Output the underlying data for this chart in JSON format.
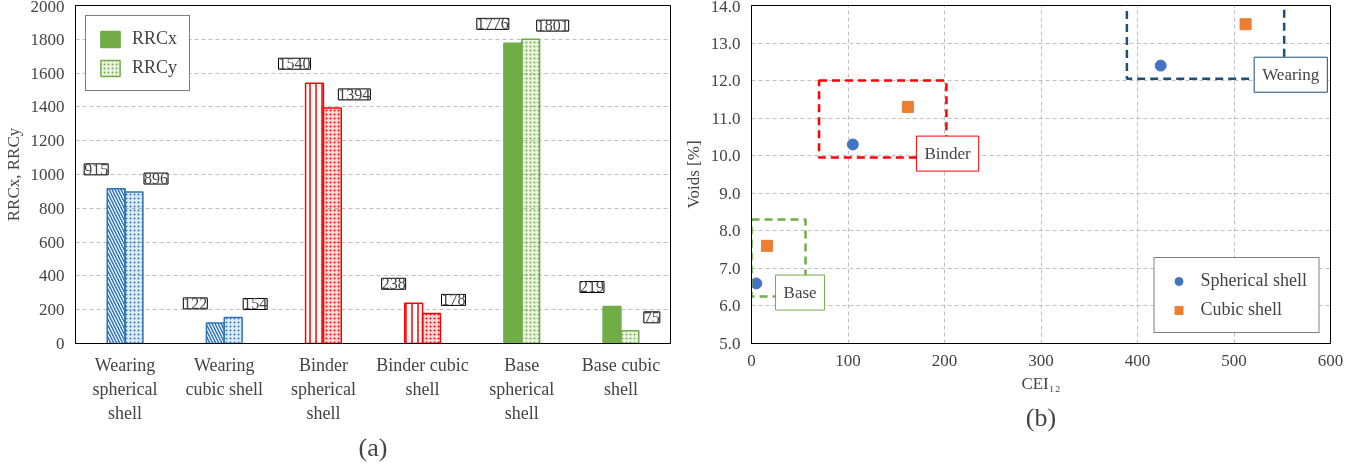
{
  "chart_data": [
    {
      "type": "bar",
      "title": "(a)",
      "ylabel": "RRCx, RRCy",
      "categories": [
        "Wearing spherical shell",
        "Wearing cubic shell",
        "Binder spherical shell",
        "Binder cubic shell",
        "Base spherical shell",
        "Base cubic shell"
      ],
      "series": [
        {
          "name": "RRCx",
          "colors": [
            "#2e75b6",
            "#2e75b6",
            "#ff0000",
            "#ff0000",
            "#70ad47",
            "#70ad47"
          ],
          "values": [
            915,
            122,
            1540,
            238,
            1776,
            219
          ]
        },
        {
          "name": "RRCy",
          "colors": [
            "#2e75b6",
            "#2e75b6",
            "#ff0000",
            "#ff0000",
            "#70ad47",
            "#70ad47"
          ],
          "values": [
            896,
            154,
            1394,
            178,
            1801,
            75
          ]
        }
      ],
      "ylim": [
        0,
        2000
      ],
      "yticks": [
        0,
        200,
        400,
        600,
        800,
        1000,
        1200,
        1400,
        1600,
        1800,
        2000
      ],
      "grid": "y",
      "legend": "top left",
      "data_labels": true
    },
    {
      "type": "scatter",
      "title": "(b)",
      "xlabel": "CEI₁₂",
      "ylabel": "Voids [%]",
      "series": [
        {
          "name": "Spherical shell",
          "color": "#4472c4",
          "marker": "circle",
          "x": [
            5,
            105,
            424
          ],
          "values": [
            6.6,
            10.3,
            12.4
          ]
        },
        {
          "name": "Cubic shell",
          "color": "#ed7d31",
          "marker": "square",
          "x": [
            16,
            162,
            512
          ],
          "values": [
            7.6,
            11.3,
            13.5
          ]
        }
      ],
      "annotations": [
        "Base",
        "Binder",
        "Wearing"
      ],
      "xlim": [
        0,
        600
      ],
      "xticks": [
        0,
        100,
        200,
        300,
        400,
        500,
        600
      ],
      "ylim": [
        5.0,
        14.0
      ],
      "yticks": [
        {
          "value": 5,
          "label": "5.0"
        },
        {
          "value": 6,
          "label": "6.0"
        },
        {
          "value": 7,
          "label": "7.0"
        },
        {
          "value": 8,
          "label": "8.0"
        },
        {
          "value": 9,
          "label": "9.0"
        },
        {
          "value": 10,
          "label": "10.0"
        },
        {
          "value": 11,
          "label": "11.0"
        },
        {
          "value": 12,
          "label": "12.0"
        },
        {
          "value": 13,
          "label": "13.0"
        },
        {
          "value": 14,
          "label": "14.0"
        }
      ],
      "grid": true,
      "legend": "bottom right"
    }
  ]
}
